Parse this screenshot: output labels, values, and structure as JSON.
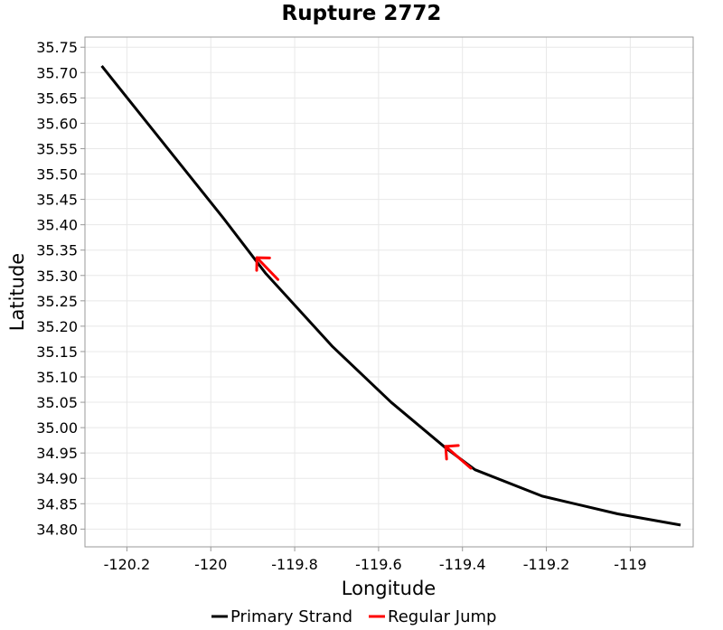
{
  "chart_data": {
    "type": "line",
    "title": "Rupture 2772",
    "xlabel": "Longitude",
    "ylabel": "Latitude",
    "xlim": [
      -120.3,
      -118.85
    ],
    "ylim": [
      34.765,
      35.77
    ],
    "grid": true,
    "legend_position": "bottom-center",
    "x_ticks": [
      {
        "value": -120.2,
        "label": "-120.2"
      },
      {
        "value": -120.0,
        "label": "-120"
      },
      {
        "value": -119.8,
        "label": "-119.8"
      },
      {
        "value": -119.6,
        "label": "-119.6"
      },
      {
        "value": -119.4,
        "label": "-119.4"
      },
      {
        "value": -119.2,
        "label": "-119.2"
      },
      {
        "value": -119.0,
        "label": "-119"
      }
    ],
    "y_ticks": [
      {
        "value": 35.75,
        "label": "35.75"
      },
      {
        "value": 35.7,
        "label": "35.70"
      },
      {
        "value": 35.65,
        "label": "35.65"
      },
      {
        "value": 35.6,
        "label": "35.60"
      },
      {
        "value": 35.55,
        "label": "35.55"
      },
      {
        "value": 35.5,
        "label": "35.50"
      },
      {
        "value": 35.45,
        "label": "35.45"
      },
      {
        "value": 35.4,
        "label": "35.40"
      },
      {
        "value": 35.35,
        "label": "35.35"
      },
      {
        "value": 35.3,
        "label": "35.30"
      },
      {
        "value": 35.25,
        "label": "35.25"
      },
      {
        "value": 35.2,
        "label": "35.20"
      },
      {
        "value": 35.15,
        "label": "35.15"
      },
      {
        "value": 35.1,
        "label": "35.10"
      },
      {
        "value": 35.05,
        "label": "35.05"
      },
      {
        "value": 35.0,
        "label": "35.00"
      },
      {
        "value": 34.95,
        "label": "34.95"
      },
      {
        "value": 34.9,
        "label": "34.90"
      },
      {
        "value": 34.85,
        "label": "34.85"
      },
      {
        "value": 34.8,
        "label": "34.80"
      }
    ],
    "series": [
      {
        "name": "Primary Strand",
        "color": "#000000",
        "points": [
          {
            "x": -120.26,
            "y": 35.713
          },
          {
            "x": -119.97,
            "y": 35.413
          },
          {
            "x": -119.87,
            "y": 35.305
          },
          {
            "x": -119.71,
            "y": 35.16
          },
          {
            "x": -119.57,
            "y": 35.05
          },
          {
            "x": -119.44,
            "y": 34.96
          },
          {
            "x": -119.37,
            "y": 34.917
          },
          {
            "x": -119.21,
            "y": 34.865
          },
          {
            "x": -119.03,
            "y": 34.83
          },
          {
            "x": -118.88,
            "y": 34.808
          }
        ]
      },
      {
        "name": "Regular Jump",
        "color": "#ff0000",
        "segments": [
          {
            "from": {
              "x": -119.84,
              "y": 35.292
            },
            "to": {
              "x": -119.89,
              "y": 35.335
            }
          },
          {
            "from": {
              "x": -119.38,
              "y": 34.92
            },
            "to": {
              "x": -119.44,
              "y": 34.963
            }
          }
        ]
      }
    ]
  }
}
